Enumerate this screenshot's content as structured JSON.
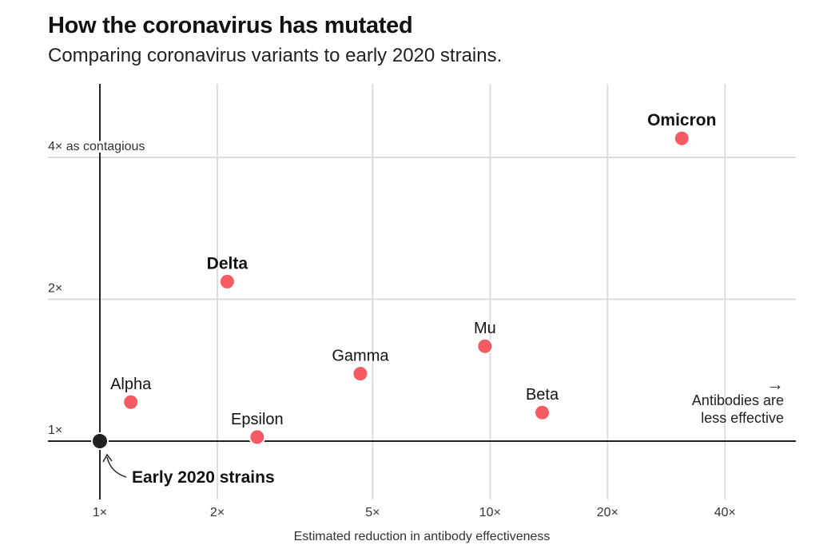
{
  "title": "How the coronavirus has mutated",
  "subtitle": "Comparing coronavirus variants to early 2020 strains.",
  "chart_data": {
    "type": "scatter",
    "xlabel": "Estimated reduction in antibody effectiveness",
    "ylabel": "",
    "x_scale": "log",
    "y_scale": "log",
    "xlim": [
      1,
      55
    ],
    "ylim": [
      0.74,
      5.6
    ],
    "x_ticks": [
      {
        "value": 1,
        "label": "1×"
      },
      {
        "value": 2,
        "label": "2×"
      },
      {
        "value": 5,
        "label": "5×"
      },
      {
        "value": 10,
        "label": "10×"
      },
      {
        "value": 20,
        "label": "20×"
      },
      {
        "value": 40,
        "label": "40×"
      }
    ],
    "y_ticks": [
      {
        "value": 1,
        "label": "1×"
      },
      {
        "value": 2,
        "label": "2×"
      },
      {
        "value": 4,
        "label": "4× as contagious"
      }
    ],
    "grid": true,
    "point_color": "#f45b63",
    "baseline_color": "#222222",
    "baseline": {
      "name": "Early 2020 strains",
      "x": 1,
      "y": 1
    },
    "points": [
      {
        "name": "Alpha",
        "x": 1.2,
        "y": 1.21,
        "bold": false
      },
      {
        "name": "Delta",
        "x": 2.12,
        "y": 2.18,
        "bold": true
      },
      {
        "name": "Epsilon",
        "x": 2.53,
        "y": 1.02,
        "bold": false
      },
      {
        "name": "Gamma",
        "x": 4.65,
        "y": 1.39,
        "bold": false
      },
      {
        "name": "Mu",
        "x": 9.7,
        "y": 1.59,
        "bold": false
      },
      {
        "name": "Beta",
        "x": 13.6,
        "y": 1.15,
        "bold": false
      },
      {
        "name": "Omicron",
        "x": 31,
        "y": 4.39,
        "bold": true
      }
    ],
    "annotation": {
      "arrow": "→",
      "line1": "Antibodies are",
      "line2": "less effective"
    }
  }
}
